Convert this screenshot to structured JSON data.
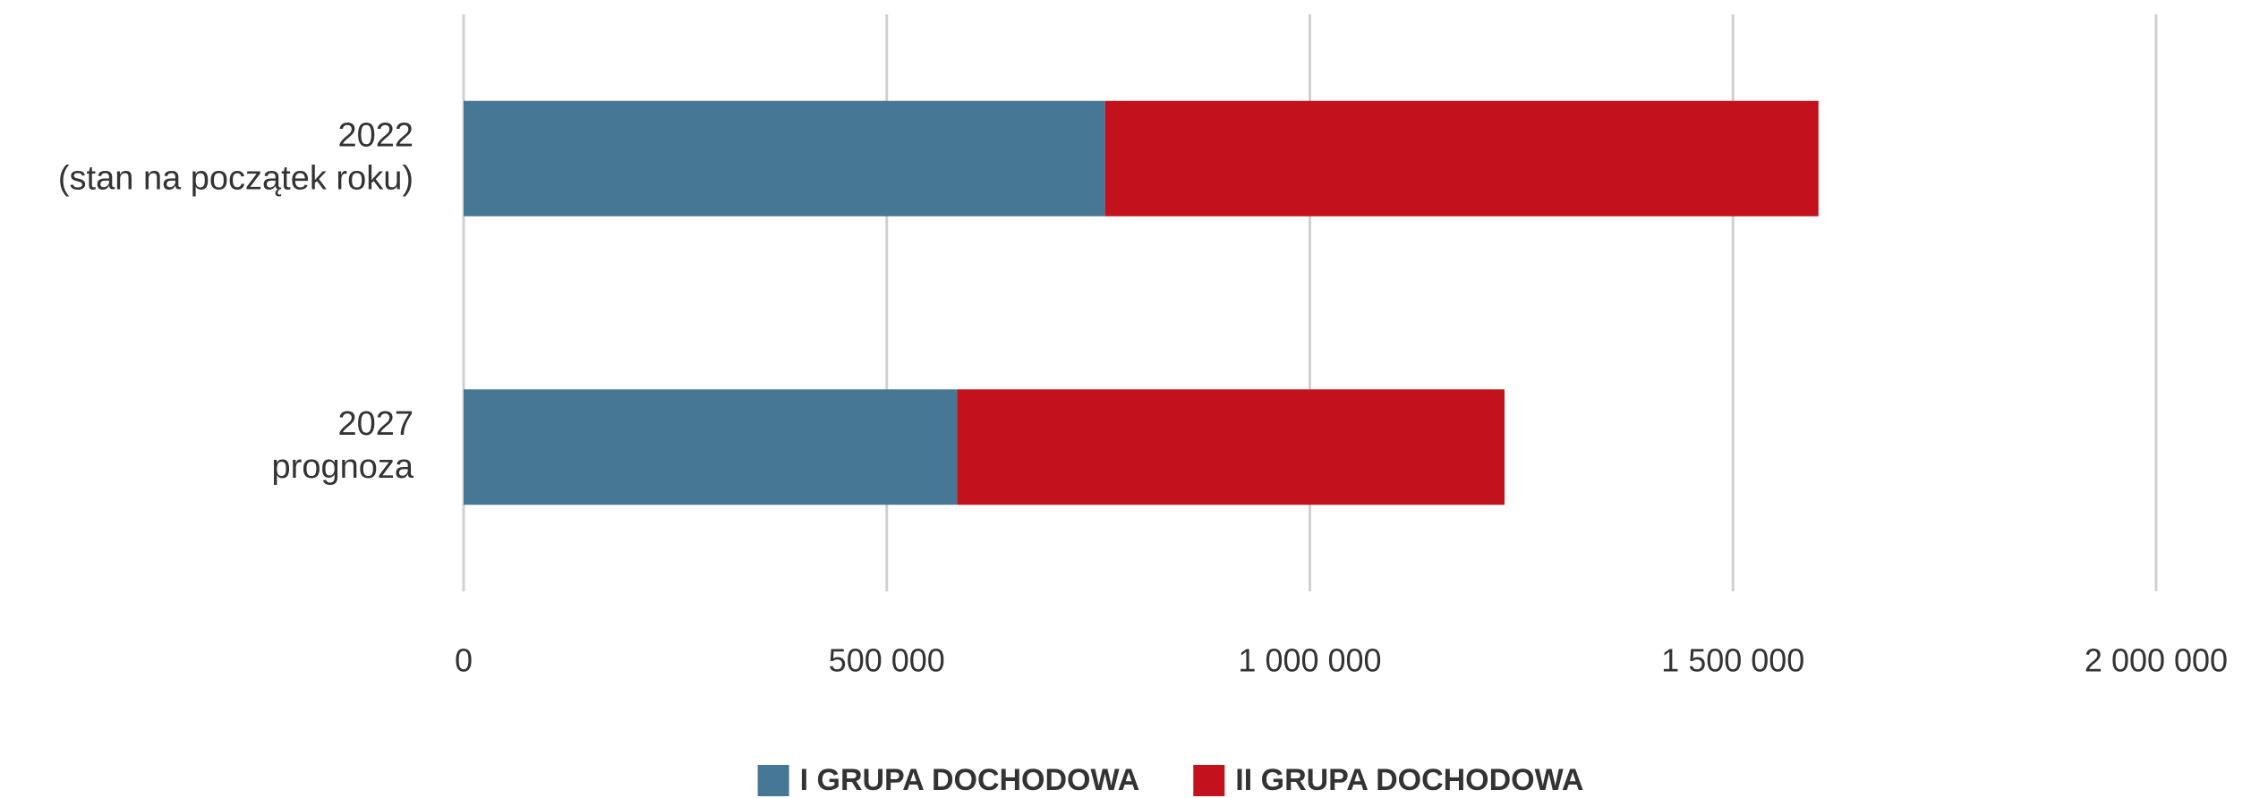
{
  "chart_data": {
    "type": "stacked-bar-horizontal",
    "categories": [
      [
        "2022",
        "(stan na początek roku)"
      ],
      [
        "2027",
        "prognoza"
      ]
    ],
    "series": [
      {
        "name": "I GRUPA DOCHODOWA",
        "color": "#467896",
        "values": [
          758000,
          583000
        ]
      },
      {
        "name": "II GRUPA DOCHODOWA",
        "color": "#c3111d",
        "values": [
          843000,
          647000
        ]
      }
    ],
    "xlim": [
      0,
      2000000
    ],
    "xticks": [
      0,
      {
        "value": 500000,
        "label": "500 000"
      },
      {
        "value": 1000000,
        "label": "1 000 000"
      },
      {
        "value": 1500000,
        "label": "1 500 000"
      },
      {
        "value": 2000000,
        "label": "2 000 000"
      }
    ],
    "grid": true,
    "legend": "bottom"
  }
}
